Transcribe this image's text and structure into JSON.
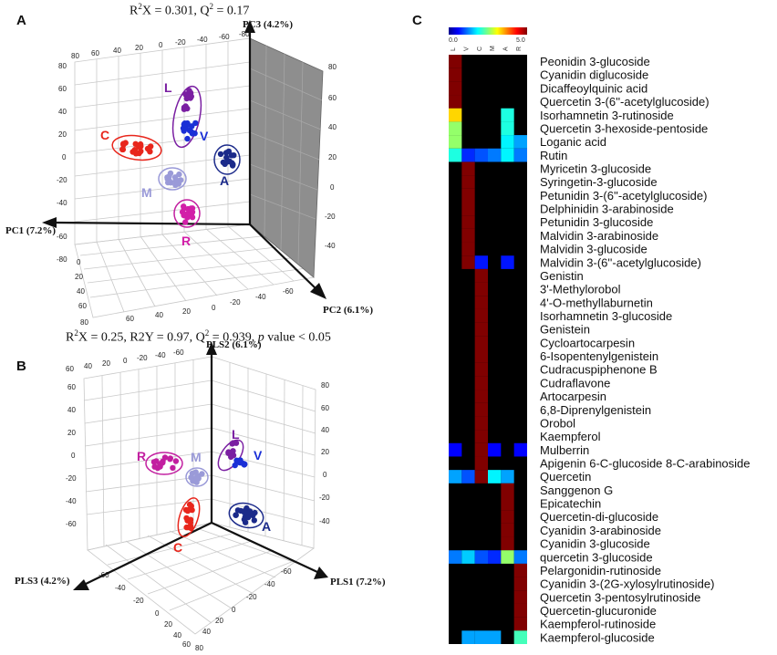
{
  "panels": {
    "A": {
      "letter": "A",
      "stats_prefix": "R",
      "stats_sup": "2",
      "stats_mid": "X = 0.301, Q",
      "stats_sup2": "2",
      "stats_end": " = 0.17",
      "axes": {
        "pc1": "PC1 (7.2%)",
        "pc2": "PC2 (6.1%)",
        "pc3": "PC3 (4.2%)"
      },
      "groups": [
        {
          "label": "L",
          "color": "#7a1fa2"
        },
        {
          "label": "V",
          "color": "#1a2fd6"
        },
        {
          "label": "C",
          "color": "#e8261c"
        },
        {
          "label": "A",
          "color": "#1b2a8a"
        },
        {
          "label": "M",
          "color": "#9a9ad8"
        },
        {
          "label": "R",
          "color": "#d21fa8"
        }
      ]
    },
    "B": {
      "letter": "B",
      "stats_prefix": "R",
      "stats_sup": "2",
      "stats_mid": "X = 0.25, R2Y = 0.97, Q",
      "stats_sup2": "2",
      "stats_end": " = 0.939, ",
      "stats_italic": "p",
      "stats_tail": " value  < 0.05",
      "axes": {
        "pls1": "PLS1 (7.2%)",
        "pls2": "PLS2 (6.1%)",
        "pls3": "PLS3 (4.2%)"
      },
      "groups": [
        {
          "label": "R",
          "color": "#c21fa0"
        },
        {
          "label": "M",
          "color": "#9a9ad8"
        },
        {
          "label": "L",
          "color": "#7a1fa2"
        },
        {
          "label": "V",
          "color": "#1a2fd6"
        },
        {
          "label": "C",
          "color": "#e8261c"
        },
        {
          "label": "A",
          "color": "#1b2a8a"
        }
      ]
    },
    "C": {
      "letter": "C"
    }
  },
  "chart_data": [
    {
      "type": "scatter",
      "title": "R2X = 0.301, Q2 = 0.17",
      "xlabel": "PC1 (7.2%)",
      "ylabel": "PC2 (6.1%)",
      "zlabel": "PC3 (4.2%)",
      "tick_labels": [
        "80",
        "60",
        "40",
        "20",
        "0",
        "-20",
        "-40",
        "-60",
        "-80"
      ],
      "series": [
        {
          "name": "L"
        },
        {
          "name": "V"
        },
        {
          "name": "C"
        },
        {
          "name": "A"
        },
        {
          "name": "M"
        },
        {
          "name": "R"
        }
      ]
    },
    {
      "type": "scatter",
      "title": "R2X = 0.25, R2Y = 0.97, Q2 = 0.939, p value < 0.05",
      "xlabel": "PLS1 (7.2%)",
      "ylabel": "PLS2 (6.1%)",
      "zlabel": "PLS3 (4.2%)",
      "tick_labels": [
        "80",
        "60",
        "40",
        "20",
        "0",
        "-20",
        "-40",
        "-60",
        "-80"
      ],
      "series": [
        {
          "name": "R"
        },
        {
          "name": "M"
        },
        {
          "name": "L"
        },
        {
          "name": "V"
        },
        {
          "name": "C"
        },
        {
          "name": "A"
        }
      ]
    },
    {
      "type": "heatmap",
      "scale": {
        "min": "0.0",
        "max": "5.0"
      },
      "columns": [
        "L",
        "V",
        "C",
        "M",
        "A",
        "R"
      ],
      "rows": [
        {
          "name": "Peonidin 3-glucoside",
          "values": [
            5,
            0,
            0,
            0,
            0,
            0
          ]
        },
        {
          "name": "Cyanidin diglucoside",
          "values": [
            5,
            0,
            0,
            0,
            0,
            0
          ]
        },
        {
          "name": "Dicaffeoylquinic acid",
          "values": [
            5,
            0,
            0,
            0,
            0,
            0
          ]
        },
        {
          "name": "Quercetin 3-(6''-acetylglucoside)",
          "values": [
            5,
            0,
            0,
            0,
            0,
            0
          ]
        },
        {
          "name": "Isorhamnetin 3-rutinoside",
          "values": [
            3.3,
            0,
            0,
            0,
            2.0,
            0
          ]
        },
        {
          "name": "Quercetin 3-hexoside-pentoside",
          "values": [
            2.6,
            0,
            0,
            0,
            2.0,
            0
          ]
        },
        {
          "name": "Loganic acid",
          "values": [
            2.6,
            0,
            0,
            0,
            1.8,
            1.4
          ]
        },
        {
          "name": "Rutin",
          "values": [
            2.0,
            0.8,
            1.0,
            1.2,
            1.8,
            1.2
          ]
        },
        {
          "name": "Myricetin 3-glucoside",
          "values": [
            0,
            5,
            0,
            0,
            0,
            0
          ]
        },
        {
          "name": "Syringetin-3-glucoside",
          "values": [
            0,
            5,
            0,
            0,
            0,
            0
          ]
        },
        {
          "name": "Petunidin 3-(6''-acetylglucoside)",
          "values": [
            0,
            5,
            0,
            0,
            0,
            0
          ]
        },
        {
          "name": "Delphinidin 3-arabinoside",
          "values": [
            0,
            5,
            0,
            0,
            0,
            0
          ]
        },
        {
          "name": "Petunidin 3-glucoside",
          "values": [
            0,
            5,
            0,
            0,
            0,
            0
          ]
        },
        {
          "name": "Malvidin 3-arabinoside",
          "values": [
            0,
            5,
            0,
            0,
            0,
            0
          ]
        },
        {
          "name": "Malvidin 3-glucoside",
          "values": [
            0,
            5,
            0,
            0,
            0,
            0
          ]
        },
        {
          "name": "Malvidin 3-(6''-acetylglucoside)",
          "values": [
            0,
            5,
            0.7,
            0,
            0.7,
            0
          ]
        },
        {
          "name": "Genistin",
          "values": [
            0,
            0,
            5,
            0,
            0,
            0
          ]
        },
        {
          "name": "3'-Methylorobol",
          "values": [
            0,
            0,
            5,
            0,
            0,
            0
          ]
        },
        {
          "name": "4'-O-methyllaburnetin",
          "values": [
            0,
            0,
            5,
            0,
            0,
            0
          ]
        },
        {
          "name": "Isorhamnetin 3-glucoside",
          "values": [
            0,
            0,
            5,
            0,
            0,
            0
          ]
        },
        {
          "name": "Genistein",
          "values": [
            0,
            0,
            5,
            0,
            0,
            0
          ]
        },
        {
          "name": "Cycloartocarpesin",
          "values": [
            0,
            0,
            5,
            0,
            0,
            0
          ]
        },
        {
          "name": "6-Isopentenylgenistein",
          "values": [
            0,
            0,
            5,
            0,
            0,
            0
          ]
        },
        {
          "name": "Cudracuspiphenone B",
          "values": [
            0,
            0,
            5,
            0,
            0,
            0
          ]
        },
        {
          "name": "Cudraflavone",
          "values": [
            0,
            0,
            5,
            0,
            0,
            0
          ]
        },
        {
          "name": "Artocarpesin",
          "values": [
            0,
            0,
            5,
            0,
            0,
            0
          ]
        },
        {
          "name": "6,8-Diprenylgenistein",
          "values": [
            0,
            0,
            5,
            0,
            0,
            0
          ]
        },
        {
          "name": "Orobol",
          "values": [
            0,
            0,
            5,
            0,
            0,
            0
          ]
        },
        {
          "name": "Kaempferol",
          "values": [
            0,
            0,
            5,
            0,
            0,
            0
          ]
        },
        {
          "name": "Mulberrin",
          "values": [
            0.6,
            0,
            5,
            0.6,
            0,
            0.6
          ]
        },
        {
          "name": "Apigenin 6-C-glucoside 8-C-arabinoside",
          "values": [
            0,
            0,
            5,
            0,
            0,
            0
          ]
        },
        {
          "name": "Quercetin",
          "values": [
            1.4,
            1.0,
            5,
            1.8,
            1.4,
            0
          ]
        },
        {
          "name": "Sanggenon G",
          "values": [
            0,
            0,
            0,
            0,
            5,
            0
          ]
        },
        {
          "name": "Epicatechin",
          "values": [
            0,
            0,
            0,
            0,
            5,
            0
          ]
        },
        {
          "name": "Quercetin-di-glucoside",
          "values": [
            0,
            0,
            0,
            0,
            5,
            0
          ]
        },
        {
          "name": "Cyanidin 3-arabinoside",
          "values": [
            0,
            0,
            0,
            0,
            5,
            0
          ]
        },
        {
          "name": "Cyanidin 3-glucoside",
          "values": [
            0,
            0,
            0,
            0,
            5,
            0
          ]
        },
        {
          "name": "quercetin 3-glucoside",
          "values": [
            1.2,
            1.6,
            1.0,
            0.8,
            2.6,
            1.2
          ]
        },
        {
          "name": "Pelargonidin-rutinoside",
          "values": [
            0,
            0,
            0,
            0,
            0,
            5
          ]
        },
        {
          "name": "Cyanidin 3-(2G-xylosylrutinoside)",
          "values": [
            0,
            0,
            0,
            0,
            0,
            5
          ]
        },
        {
          "name": "Quercetin 3-pentosylrutinoside",
          "values": [
            0,
            0,
            0,
            0,
            0,
            5
          ]
        },
        {
          "name": "Quercetin-glucuronide",
          "values": [
            0,
            0,
            0,
            0,
            0,
            5
          ]
        },
        {
          "name": "Kaempferol-rutinoside",
          "values": [
            0,
            0,
            0,
            0,
            0,
            5
          ]
        },
        {
          "name": "Kaempferol-glucoside",
          "values": [
            0,
            1.4,
            1.4,
            1.4,
            0,
            2.2
          ]
        }
      ]
    }
  ]
}
